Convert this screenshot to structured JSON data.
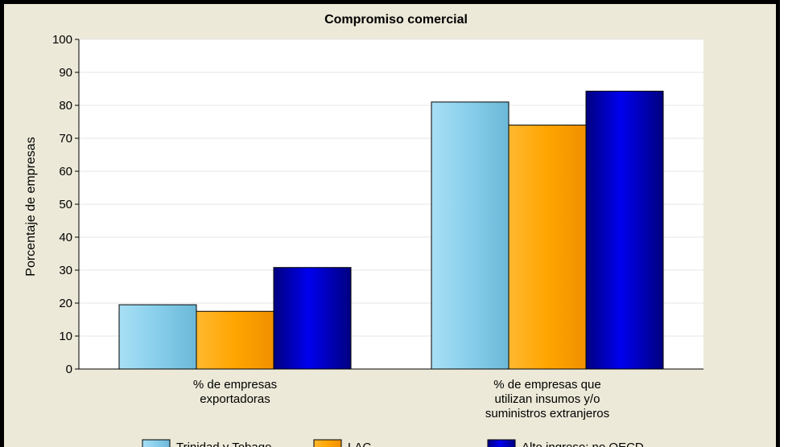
{
  "chart_data": {
    "type": "bar",
    "title": "Compromiso comercial",
    "xlabel": "",
    "ylabel": "Porcentaje de empresas",
    "ylim": [
      0,
      100
    ],
    "yticks": [
      0,
      10,
      20,
      30,
      40,
      50,
      60,
      70,
      80,
      90,
      100
    ],
    "grid": true,
    "legend_position": "bottom",
    "categories": [
      [
        "% de empresas",
        "exportadoras"
      ],
      [
        "% de empresas que",
        "utilizan insumos y/o",
        "suministros extranjeros"
      ]
    ],
    "series": [
      {
        "name": "Trinidad y Tobago",
        "values": [
          19.5,
          81
        ],
        "color": "#87ceeb"
      },
      {
        "name": "LAC",
        "values": [
          17.5,
          74
        ],
        "color": "#ffa500"
      },
      {
        "name": "Alto ingreso: no OECD",
        "values": [
          30.8,
          84.3
        ],
        "color": "#0000cd"
      }
    ]
  }
}
